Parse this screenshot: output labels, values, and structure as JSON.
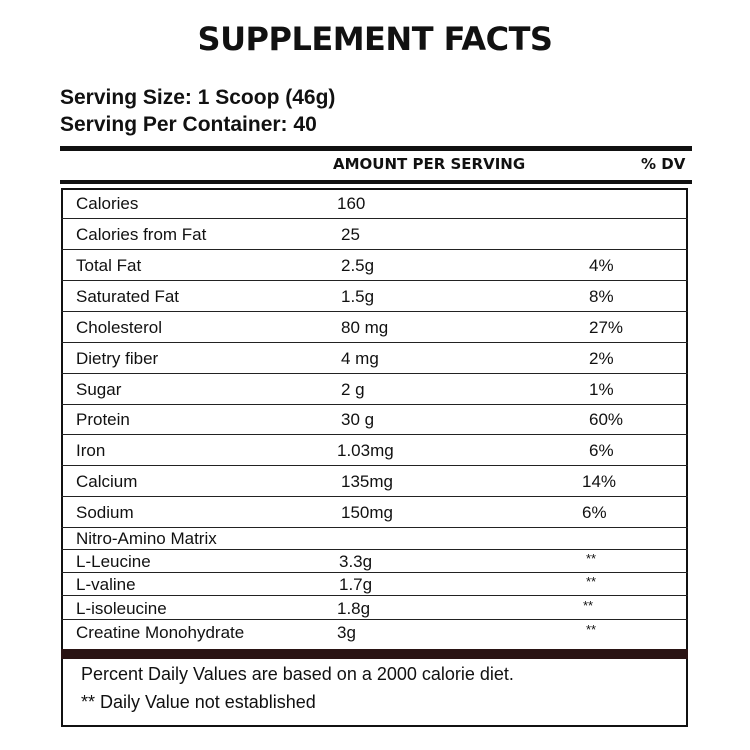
{
  "title": "SUPPLEMENT FACTS",
  "serving_size": "Serving Size: 1 Scoop (46g)",
  "servings_per_container": "Serving Per Container: 40",
  "header": {
    "amount": "AMOUNT PER SERVING",
    "dv": "% DV"
  },
  "rows": [
    {
      "name": "Calories",
      "amount": "160",
      "dv": ""
    },
    {
      "name": "Calories from Fat",
      "amount": "25",
      "dv": ""
    },
    {
      "name": "Total Fat",
      "amount": "2.5g",
      "dv": "4%"
    },
    {
      "name": "Saturated Fat",
      "amount": "1.5g",
      "dv": "8%"
    },
    {
      "name": "Cholesterol",
      "amount": "80 mg",
      "dv": "27%"
    },
    {
      "name": "Dietry fiber",
      "amount": "4 mg",
      "dv": "2%"
    },
    {
      "name": "Sugar",
      "amount": "2 g",
      "dv": "1%"
    },
    {
      "name": "Protein",
      "amount": "30 g",
      "dv": "60%"
    },
    {
      "name": "Iron",
      "amount": "1.03mg",
      "dv": "6%"
    },
    {
      "name": "Calcium",
      "amount": "135mg",
      "dv": "14%"
    },
    {
      "name": "Sodium",
      "amount": "150mg",
      "dv": "6%"
    }
  ],
  "matrix": {
    "label": "Nitro-Amino Matrix",
    "items": [
      {
        "name": "L-Leucine",
        "amount": "3.3g",
        "dv": "**"
      },
      {
        "name": "L-valine",
        "amount": "1.7g",
        "dv": "**"
      },
      {
        "name": "L-isoleucine",
        "amount": "1.8g",
        "dv": "**"
      },
      {
        "name": "Creatine Monohydrate",
        "amount": "3g",
        "dv": "**"
      }
    ]
  },
  "footnotes": [
    "Percent Daily Values are based on a 2000 calorie diet.",
    "** Daily Value not established"
  ]
}
